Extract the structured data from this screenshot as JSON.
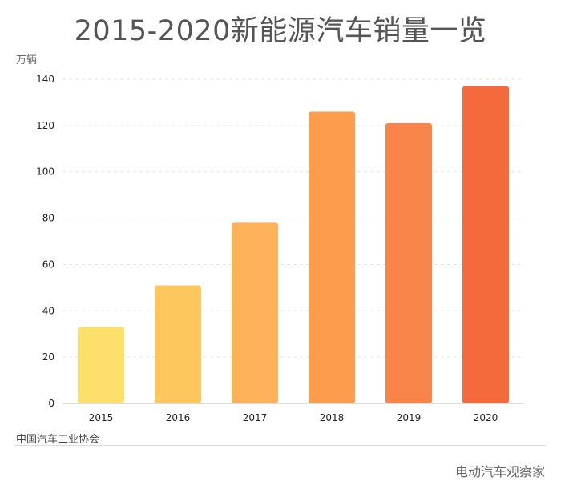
{
  "chart_data": {
    "type": "bar",
    "title": "2015-2020新能源汽车销量一览",
    "ylabel": "万辆",
    "categories": [
      "2015",
      "2016",
      "2017",
      "2018",
      "2019",
      "2020"
    ],
    "values": [
      33,
      51,
      78,
      126,
      121,
      137
    ],
    "ylim": [
      0,
      140
    ],
    "yticks": [
      "0",
      "20",
      "40",
      "60",
      "80",
      "100",
      "120",
      "140"
    ],
    "grid": true,
    "colors": [
      "#fde06b",
      "#fec75e",
      "#fdb158",
      "#fc9c4c",
      "#f9844a",
      "#f56a3c"
    ]
  },
  "footer": {
    "source": "中国汽车工业协会",
    "credit": "电动汽车观察家"
  }
}
